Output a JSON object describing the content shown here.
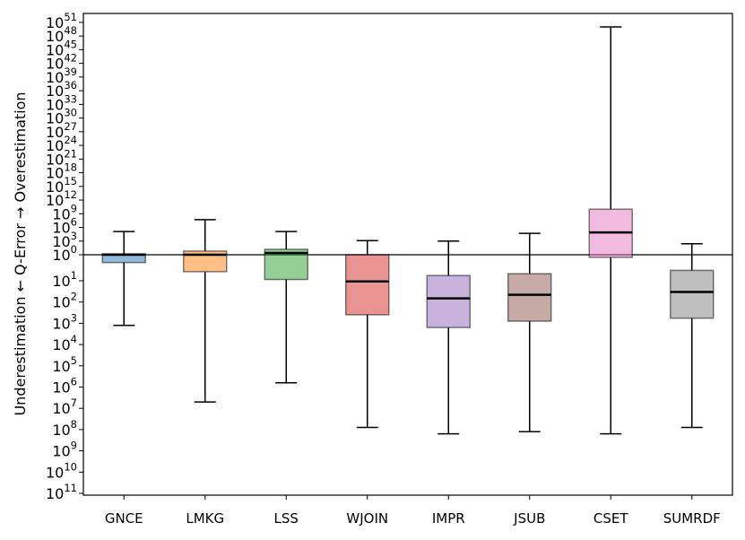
{
  "chart_data": {
    "type": "box",
    "title": "",
    "xlabel": "",
    "ylabel": "Underestimation ← Q-Error → Overestimation",
    "y_scale": "symmetric log10 q-error (negative exponent = underestimation, positive = overestimation)",
    "ylim_exponent": [
      -11,
      52
    ],
    "grid": false,
    "reference_line": "10^0",
    "upper_tick_exponents": [
      "0",
      "3",
      "6",
      "9",
      "12",
      "15",
      "18",
      "21",
      "24",
      "27",
      "30",
      "33",
      "36",
      "39",
      "42",
      "45",
      "48",
      "51"
    ],
    "lower_tick_exponents": [
      "1",
      "2",
      "3",
      "4",
      "5",
      "6",
      "7",
      "8",
      "9",
      "10",
      "11"
    ],
    "categories": [
      "GNCE",
      "LMKG",
      "LSS",
      "WJOIN",
      "IMPR",
      "JSUB",
      "CSET",
      "SUMRDF"
    ],
    "colors": [
      "#1f77b4",
      "#ff7f0e",
      "#2ca02c",
      "#d62728",
      "#9467bd",
      "#8c564b",
      "#e377c2",
      "#7f7f7f"
    ],
    "boxes": [
      {
        "name": "GNCE",
        "whisker_low": -3.1,
        "q1": -0.3,
        "median": 0,
        "q3": 0.2,
        "whisker_high": 5.1
      },
      {
        "name": "LMKG",
        "whisker_low": -6.7,
        "q1": -0.65,
        "median": 0,
        "q3": 0.8,
        "whisker_high": 7.7
      },
      {
        "name": "LSS",
        "whisker_low": -5.8,
        "q1": -0.95,
        "median": 0.4,
        "q3": 1.2,
        "whisker_high": 5.1
      },
      {
        "name": "WJOIN",
        "whisker_low": -7.9,
        "q1": -2.6,
        "median": -1.03,
        "q3": 0,
        "whisker_high": 3.1
      },
      {
        "name": "IMPR",
        "whisker_low": -8.2,
        "q1": -3.2,
        "median": -1.83,
        "q3": -0.8,
        "whisker_high": 3.0
      },
      {
        "name": "JSUB",
        "whisker_low": -8.1,
        "q1": -2.9,
        "median": -1.66,
        "q3": -0.73,
        "whisker_high": 4.7
      },
      {
        "name": "CSET",
        "whisker_low": -8.2,
        "q1": -0.1,
        "median": 4.9,
        "q3": 10,
        "whisker_high": 50
      },
      {
        "name": "SUMRDF",
        "whisker_low": -7.9,
        "q1": -2.76,
        "median": -1.53,
        "q3": -0.6,
        "whisker_high": 2.4
      }
    ]
  }
}
